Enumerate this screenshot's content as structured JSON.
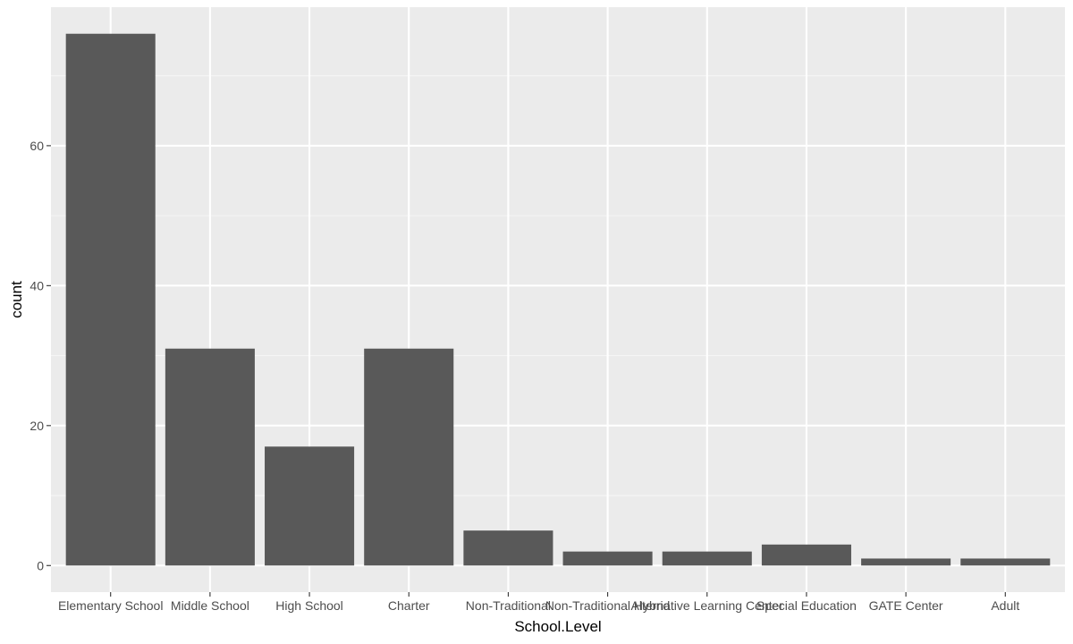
{
  "chart_data": {
    "type": "bar",
    "categories": [
      "Elementary School",
      "Middle School",
      "High School",
      "Charter",
      "Non-Traditional",
      "Non-Traditional Hybrid",
      "Alternative Learning Center",
      "Special Education",
      "GATE Center",
      "Adult"
    ],
    "values": [
      76,
      31,
      17,
      31,
      5,
      2,
      2,
      3,
      1,
      1
    ],
    "title": "",
    "xlabel": "School.Level",
    "ylabel": "count",
    "ylim": [
      -3.8,
      79.8
    ],
    "yticks": [
      0,
      20,
      40,
      60
    ],
    "grid": true,
    "colors": {
      "panel": "#ebebeb",
      "grid_major": "#ffffff",
      "grid_minor": "#f5f5f5",
      "bar": "#595959",
      "tick": "#333333",
      "tick_label": "#4d4d4d"
    }
  }
}
